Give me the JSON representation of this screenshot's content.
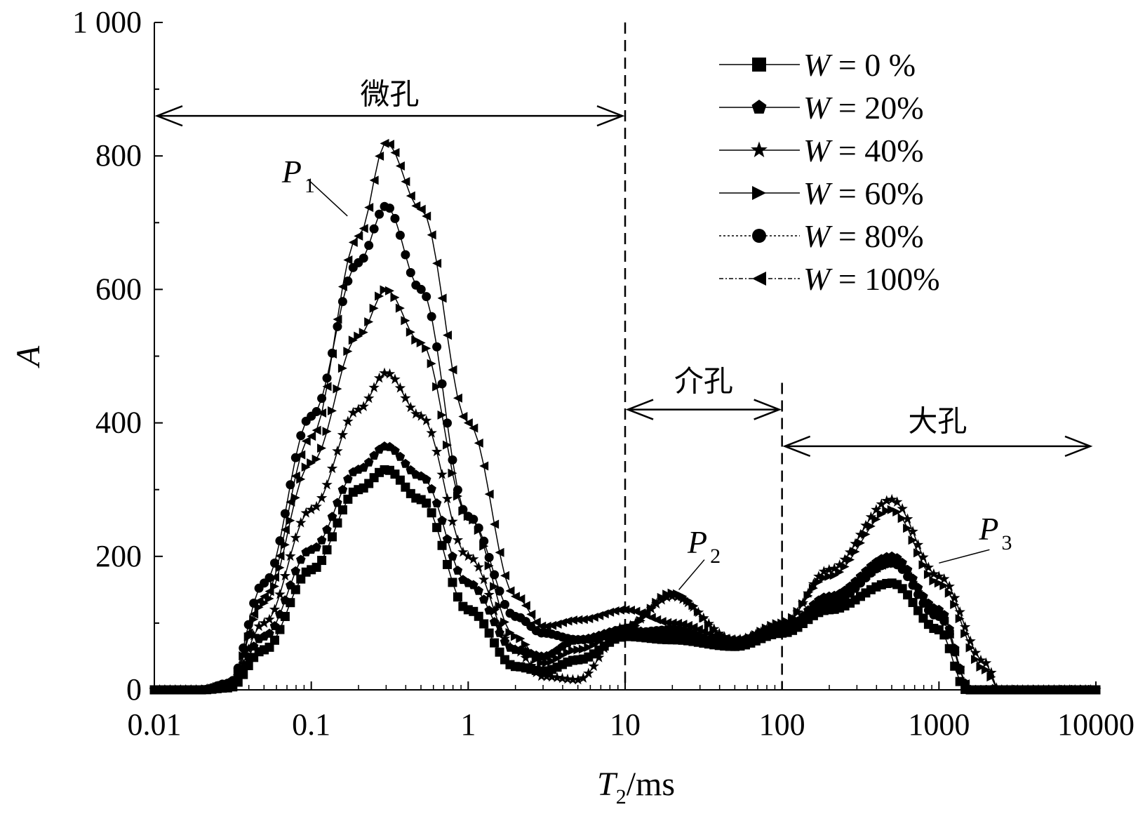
{
  "chart_data": {
    "type": "scatter",
    "xlabel": {
      "main": "T",
      "sub": "2",
      "unit": "/ms"
    },
    "ylabel": "A",
    "xscale": "log",
    "xlim": [
      0.01,
      10000
    ],
    "ylim": [
      0,
      1000
    ],
    "x_ticks": [
      {
        "value": 0.01,
        "label": "0.01"
      },
      {
        "value": 0.1,
        "label": "0.1"
      },
      {
        "value": 1,
        "label": "1"
      },
      {
        "value": 10,
        "label": "10"
      },
      {
        "value": 100,
        "label": "100"
      },
      {
        "value": 1000,
        "label": "1000"
      },
      {
        "value": 10000,
        "label": "10000"
      }
    ],
    "y_ticks": [
      {
        "value": 0,
        "label": "0"
      },
      {
        "value": 200,
        "label": "200"
      },
      {
        "value": 400,
        "label": "400"
      },
      {
        "value": 600,
        "label": "600"
      },
      {
        "value": 800,
        "label": "800"
      },
      {
        "value": 1000,
        "label": "1 000"
      }
    ],
    "grid": false,
    "legend_position": "top-right",
    "series": [
      {
        "name": "W = 0 %",
        "legend_var": "W",
        "legend_rest": " = 0 %",
        "marker": "square",
        "x": [
          0.01,
          0.02,
          0.03,
          0.05,
          0.1,
          0.2,
          0.3,
          0.5,
          1,
          2,
          3,
          5,
          10,
          20,
          50,
          100,
          200,
          500,
          1000,
          1500,
          3000,
          10000
        ],
        "values": [
          0,
          0,
          3,
          60,
          180,
          300,
          330,
          285,
          120,
          35,
          28,
          45,
          80,
          75,
          65,
          85,
          120,
          160,
          90,
          0,
          0,
          0
        ]
      },
      {
        "name": "W = 20%",
        "legend_var": "W",
        "legend_rest": " = 20%",
        "marker": "pentagon",
        "x": [
          0.01,
          0.02,
          0.03,
          0.05,
          0.1,
          0.2,
          0.3,
          0.5,
          1,
          2,
          3,
          5,
          10,
          20,
          50,
          100,
          200,
          500,
          1000,
          1600,
          3000,
          10000
        ],
        "values": [
          0,
          0,
          5,
          80,
          210,
          330,
          365,
          320,
          160,
          60,
          50,
          75,
          90,
          80,
          70,
          90,
          140,
          200,
          120,
          0,
          0,
          0
        ]
      },
      {
        "name": "W = 40%",
        "legend_var": "W",
        "legend_rest": " = 40%",
        "marker": "star",
        "x": [
          0.01,
          0.02,
          0.03,
          0.05,
          0.1,
          0.2,
          0.3,
          0.5,
          1,
          2,
          3,
          5,
          10,
          20,
          50,
          100,
          200,
          500,
          1000,
          2000,
          2400,
          10000
        ],
        "values": [
          0,
          0,
          6,
          100,
          270,
          420,
          475,
          410,
          200,
          60,
          20,
          15,
          95,
          140,
          75,
          95,
          180,
          285,
          170,
          40,
          0,
          0
        ]
      },
      {
        "name": "W = 60%",
        "legend_var": "W",
        "legend_rest": " = 60%",
        "marker": "triangle-right",
        "x": [
          0.01,
          0.02,
          0.03,
          0.05,
          0.1,
          0.2,
          0.3,
          0.5,
          1,
          2,
          3,
          5,
          10,
          20,
          50,
          100,
          200,
          500,
          1000,
          2000,
          2400,
          10000
        ],
        "values": [
          0,
          0,
          8,
          130,
          340,
          530,
          600,
          520,
          260,
          80,
          40,
          60,
          90,
          145,
          70,
          100,
          170,
          270,
          160,
          30,
          0,
          0
        ]
      },
      {
        "name": "W = 80%",
        "legend_var": "W",
        "legend_rest": " = 80%",
        "marker": "circle",
        "x": [
          0.01,
          0.02,
          0.03,
          0.05,
          0.1,
          0.2,
          0.3,
          0.5,
          1,
          2,
          3,
          5,
          10,
          20,
          50,
          100,
          200,
          500,
          1000,
          1600,
          3000,
          10000
        ],
        "values": [
          0,
          0,
          10,
          160,
          410,
          640,
          725,
          600,
          260,
          110,
          85,
          75,
          85,
          90,
          65,
          90,
          130,
          190,
          110,
          0,
          0,
          0
        ]
      },
      {
        "name": "W = 100%",
        "legend_var": "W",
        "legend_rest": " = 100%",
        "marker": "triangle-left",
        "x": [
          0.01,
          0.02,
          0.03,
          0.05,
          0.1,
          0.2,
          0.3,
          0.5,
          1,
          2,
          3,
          5,
          10,
          20,
          50,
          100,
          200,
          500,
          1000,
          1600,
          3000,
          10000
        ],
        "values": [
          0,
          0,
          8,
          140,
          380,
          680,
          820,
          720,
          400,
          140,
          95,
          105,
          120,
          100,
          75,
          95,
          140,
          190,
          110,
          0,
          0,
          0
        ]
      }
    ],
    "annotations": {
      "regions": [
        {
          "label": "微孔",
          "from": 0.01,
          "to": 10,
          "arrow_y": 860,
          "text_y": 890
        },
        {
          "label": "介孔",
          "from": 10,
          "to": 100,
          "arrow_y": 420,
          "text_y": 460
        },
        {
          "label": "大孔",
          "from": 100,
          "to": 10000,
          "arrow_y": 365,
          "text_y": 400
        }
      ],
      "dividers": [
        10,
        100
      ],
      "peaks": [
        {
          "letter": "P",
          "sub": "1"
        },
        {
          "letter": "P",
          "sub": "2"
        },
        {
          "letter": "P",
          "sub": "3"
        }
      ]
    }
  }
}
